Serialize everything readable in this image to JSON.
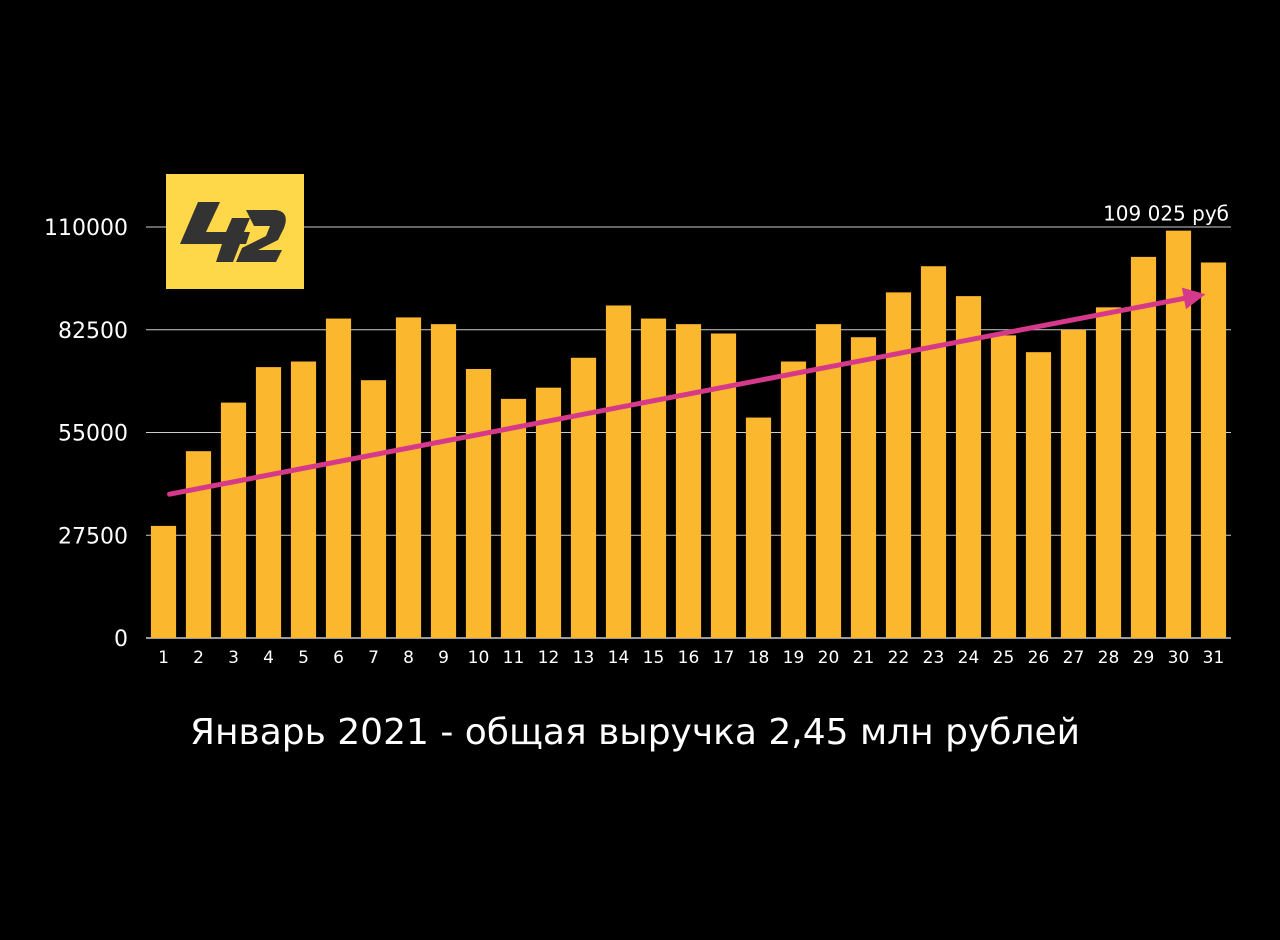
{
  "caption": "Январь 2021 - общая выручка 2,45 млн рублей",
  "logo": {
    "text": "42",
    "background": "#FFD84A",
    "glyph_color": "#333333"
  },
  "colors": {
    "background": "#000000",
    "bar": "#FBB82E",
    "trend": "#D6398A",
    "grid": "#cccccc",
    "text": "#ffffff"
  },
  "chart_data": {
    "type": "bar",
    "title": "",
    "xlabel": "",
    "ylabel": "",
    "categories": [
      "1",
      "2",
      "3",
      "4",
      "5",
      "6",
      "7",
      "8",
      "9",
      "10",
      "11",
      "12",
      "13",
      "14",
      "15",
      "16",
      "17",
      "18",
      "19",
      "20",
      "21",
      "22",
      "23",
      "24",
      "25",
      "26",
      "27",
      "28",
      "29",
      "30",
      "31"
    ],
    "values": [
      30000,
      50000,
      63000,
      72500,
      74000,
      85500,
      69000,
      85800,
      84000,
      72000,
      64000,
      67000,
      75000,
      89000,
      85500,
      84000,
      81500,
      59000,
      74000,
      84000,
      80500,
      92500,
      99500,
      91500,
      81000,
      76500,
      82500,
      88500,
      102000,
      109025,
      100500
    ],
    "ylim": [
      0,
      110000
    ],
    "yticks": [
      "0",
      "27500",
      "55000",
      "82500",
      "110000"
    ],
    "grid": true,
    "legend": "none",
    "annotations": [
      {
        "text": "109 025 руб",
        "category": "30",
        "value": 109025
      }
    ],
    "trend_line": {
      "from": {
        "category": "1",
        "value": 38500
      },
      "to": {
        "category": "31",
        "value": 92000
      },
      "arrow": true
    }
  }
}
